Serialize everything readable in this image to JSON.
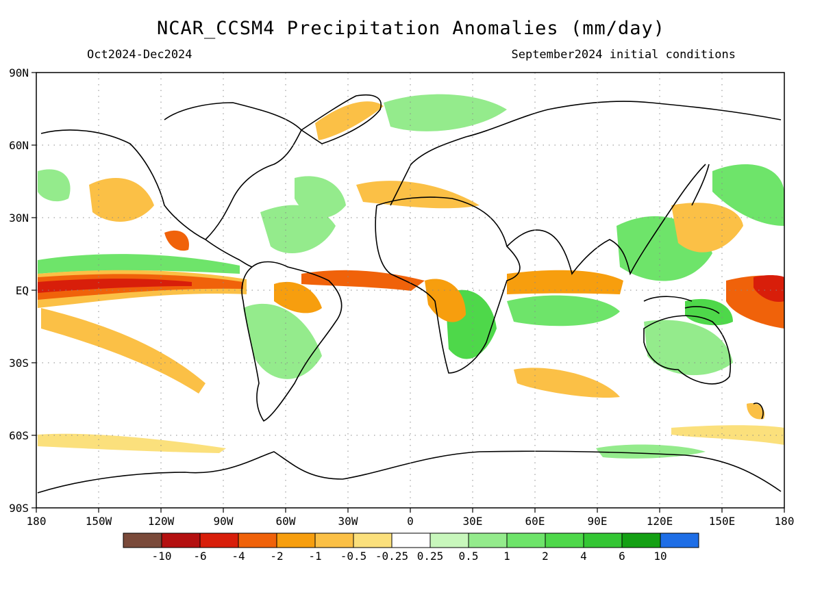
{
  "title": "NCAR_CCSM4 Precipitation Anomalies (mm/day)",
  "period": "Oct2024-Dec2024",
  "initial_conditions": "September2024 initial conditions",
  "lat_labels": [
    "90N",
    "60N",
    "30N",
    "EQ",
    "30S",
    "60S",
    "90S"
  ],
  "lon_labels": [
    "180",
    "150W",
    "120W",
    "90W",
    "60W",
    "30W",
    "0",
    "30E",
    "60E",
    "90E",
    "120E",
    "150E",
    "180"
  ],
  "legend": {
    "labels": [
      "-10",
      "-6",
      "-4",
      "-2",
      "-1",
      "-0.5",
      "-0.25",
      "0.25",
      "0.5",
      "1",
      "2",
      "4",
      "6",
      "10"
    ],
    "colors": [
      "#7a4a3a",
      "#b41010",
      "#d81e0a",
      "#f0620a",
      "#f79e0e",
      "#fbc046",
      "#fbe07c",
      "#ffffff",
      "#c8f7bc",
      "#94eb8c",
      "#6ee46a",
      "#4ed84a",
      "#34c634",
      "#14a014",
      "#1e6ee6"
    ]
  }
}
